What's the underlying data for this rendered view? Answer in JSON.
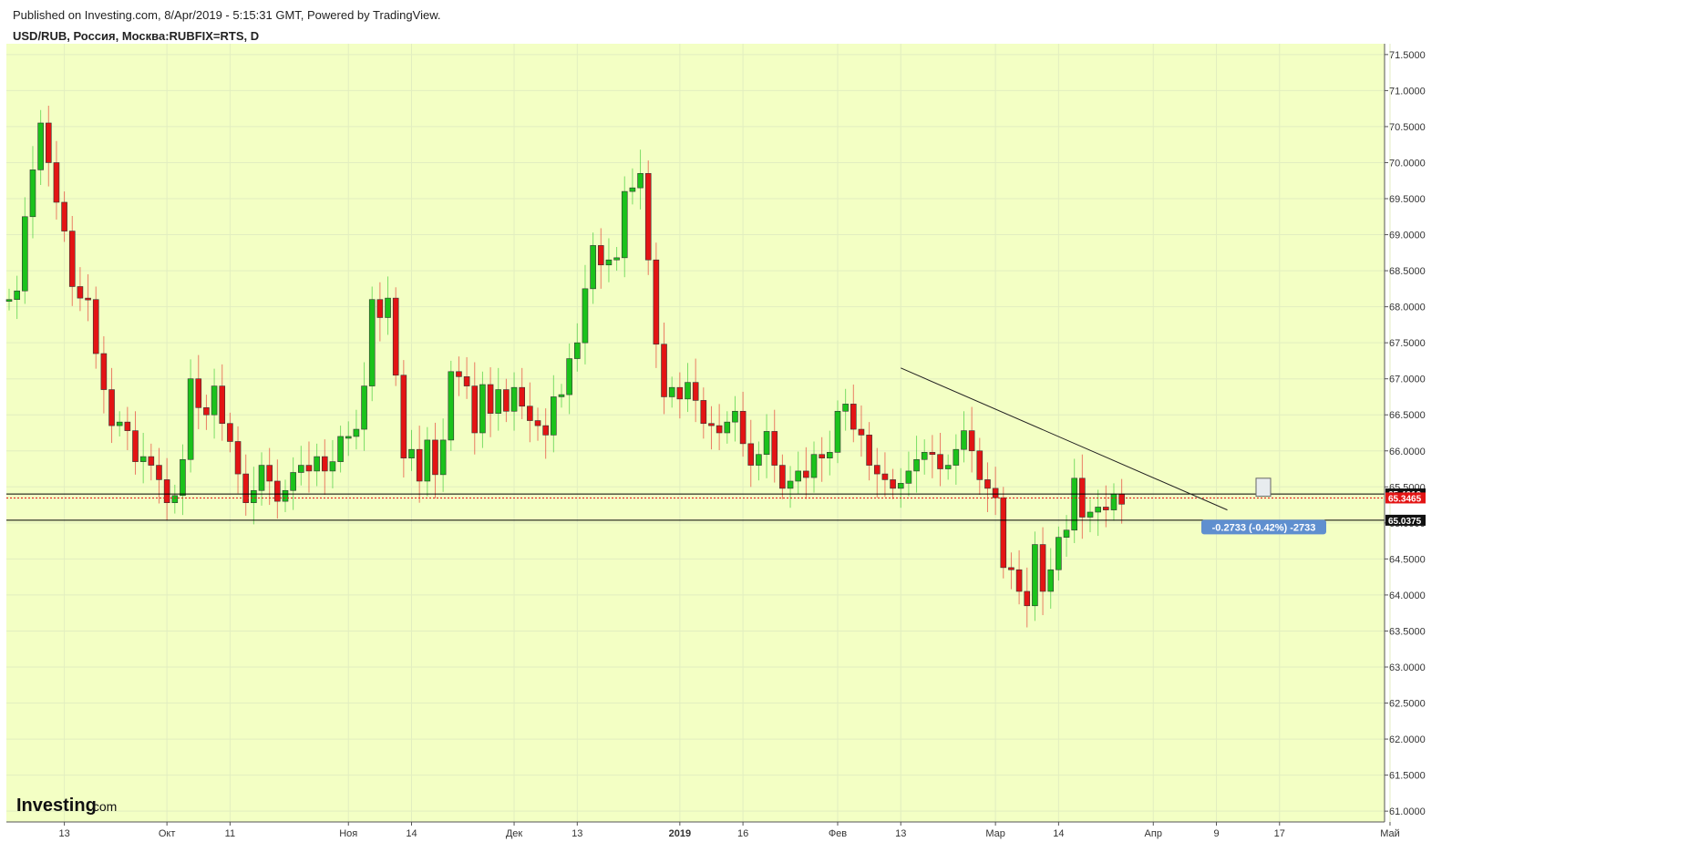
{
  "header": {
    "published": "Published on Investing.com, 8/Apr/2019 - 5:15:31 GMT, Powered by TradingView.",
    "symbol": "USD/RUB, Россия, Москва:RUBFIX=RTS, D"
  },
  "watermark": {
    "brand": "Investing",
    "suffix": ".com"
  },
  "colors": {
    "background": "#f3ffc4",
    "up": "#1bc21b",
    "down": "#e31414",
    "grid": "#e2eec0",
    "axis": "#333333"
  },
  "chart_data": {
    "type": "candlestick",
    "ylim": [
      60.85,
      71.65
    ],
    "y_ticks": [
      "71.5000",
      "71.0000",
      "70.5000",
      "70.0000",
      "69.5000",
      "69.0000",
      "68.5000",
      "68.0000",
      "67.5000",
      "67.0000",
      "66.5000",
      "66.0000",
      "65.5000",
      "65.0000",
      "64.5000",
      "64.0000",
      "63.5000",
      "63.0000",
      "62.5000",
      "62.0000",
      "61.5000",
      "61.0000"
    ],
    "x_ticks": [
      {
        "label": "13",
        "bar": 7,
        "bold": false
      },
      {
        "label": "Окт",
        "bar": 20,
        "bold": false
      },
      {
        "label": "11",
        "bar": 28,
        "bold": false
      },
      {
        "label": "Ноя",
        "bar": 43,
        "bold": false
      },
      {
        "label": "14",
        "bar": 51,
        "bold": false
      },
      {
        "label": "Дек",
        "bar": 64,
        "bold": false
      },
      {
        "label": "13",
        "bar": 72,
        "bold": false
      },
      {
        "label": "2019",
        "bar": 85,
        "bold": true
      },
      {
        "label": "16",
        "bar": 93,
        "bold": false
      },
      {
        "label": "Фев",
        "bar": 105,
        "bold": false
      },
      {
        "label": "13",
        "bar": 113,
        "bold": false
      },
      {
        "label": "Мар",
        "bar": 125,
        "bold": false
      },
      {
        "label": "14",
        "bar": 133,
        "bold": false
      },
      {
        "label": "Апр",
        "bar": 145,
        "bold": false
      },
      {
        "label": "9",
        "bar": 153,
        "bold": false
      },
      {
        "label": "17",
        "bar": 161,
        "bold": false
      },
      {
        "label": "Май",
        "bar": 175,
        "bold": false
      }
    ],
    "closes": [
      68.1,
      68.22,
      69.25,
      69.9,
      70.55,
      70.0,
      69.45,
      69.05,
      68.28,
      68.12,
      68.1,
      67.35,
      66.85,
      66.35,
      66.4,
      66.28,
      65.85,
      65.92,
      65.8,
      65.6,
      65.28,
      65.38,
      65.88,
      67.0,
      66.6,
      66.5,
      66.9,
      66.38,
      66.13,
      65.68,
      65.28,
      65.45,
      65.8,
      65.58,
      65.3,
      65.45,
      65.7,
      65.8,
      65.72,
      65.92,
      65.72,
      65.85,
      66.2,
      66.2,
      66.3,
      66.9,
      68.1,
      67.85,
      68.12,
      67.05,
      65.9,
      66.02,
      65.58,
      66.15,
      65.67,
      66.15,
      67.1,
      67.03,
      66.9,
      66.25,
      66.92,
      66.52,
      66.85,
      66.55,
      66.88,
      66.62,
      66.42,
      66.35,
      66.22,
      66.75,
      66.78,
      67.28,
      67.5,
      68.25,
      68.85,
      68.58,
      68.65,
      68.68,
      69.6,
      69.65,
      69.85,
      68.65,
      67.48,
      66.75,
      66.88,
      66.72,
      66.95,
      66.7,
      66.38,
      66.35,
      66.25,
      66.4,
      66.55,
      66.1,
      65.8,
      65.95,
      66.27,
      65.8,
      65.48,
      65.58,
      65.72,
      65.63,
      65.95,
      65.9,
      65.98,
      66.55,
      66.65,
      66.3,
      66.22,
      65.8,
      65.68,
      65.6,
      65.48,
      65.55,
      65.72,
      65.88,
      65.98,
      65.95,
      65.75,
      65.8,
      66.02,
      66.28,
      66.0,
      65.6,
      65.48,
      65.35,
      64.38,
      64.35,
      64.05,
      63.85,
      64.7,
      64.05,
      64.35,
      64.8,
      64.9,
      65.62,
      65.08,
      65.15,
      65.22,
      65.18,
      65.4,
      65.26
    ],
    "trendline": [
      {
        "bar": 113,
        "price": 67.15
      },
      {
        "bar": 153,
        "price": 65.18
      }
    ],
    "h_lines": [
      {
        "price": 65.4019,
        "label": "65.4019",
        "color": "#000000",
        "style": "solid"
      },
      {
        "price": 65.3465,
        "label": "65.3465",
        "color": "#e31414",
        "style": "dotted"
      },
      {
        "price": 65.0375,
        "label": "65.0375",
        "color": "#000000",
        "style": "solid"
      }
    ],
    "measure_label": "-0.2733 (-0.42%) -2733"
  }
}
